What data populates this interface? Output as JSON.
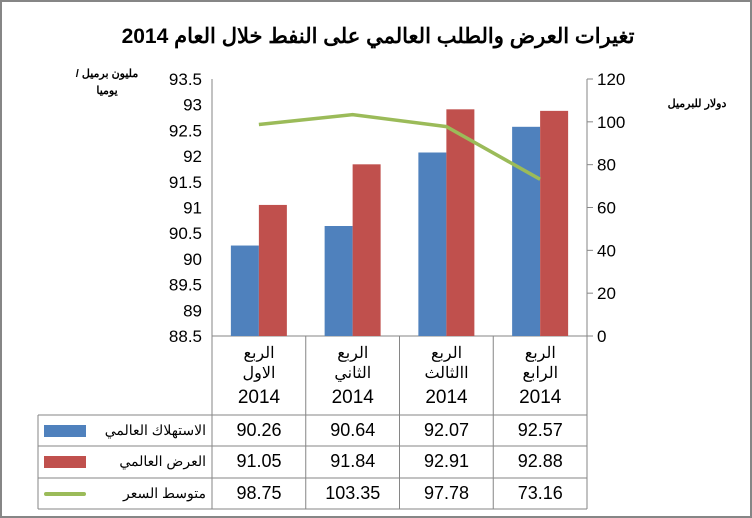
{
  "chart_data": {
    "type": "bar+line",
    "title": "تغيرات العرض والطلب العالمي على النفط خلال العام 2014",
    "ylabel_left": "مليون برميل /يوميا",
    "ylabel_right": "دولار للبرميل",
    "ylim_left": [
      88.5,
      93.5
    ],
    "yticks_left": [
      "88.5",
      "89",
      "89.5",
      "90",
      "90.5",
      "91",
      "91.5",
      "92",
      "92.5",
      "93",
      "93.5"
    ],
    "ylim_right": [
      0,
      120
    ],
    "yticks_right": [
      "0",
      "20",
      "40",
      "60",
      "80",
      "100",
      "120"
    ],
    "grid": false,
    "categories": [
      {
        "line1": "الربع",
        "line2": "الاول",
        "year": "2014"
      },
      {
        "line1": "الربع",
        "line2": "الثاني",
        "year": "2014"
      },
      {
        "line1": "الربع",
        "line2": "االثالث",
        "year": "2014"
      },
      {
        "line1": "الربع",
        "line2": "الرابع",
        "year": "2014"
      }
    ],
    "series": [
      {
        "name": "الاستهلاك العالمي",
        "type": "bar",
        "axis": "left",
        "color": "#4F81BD",
        "values": [
          90.26,
          90.64,
          92.07,
          92.57
        ],
        "labels": [
          "90.26",
          "90.64",
          "92.07",
          "92.57"
        ]
      },
      {
        "name": "العرض العالمي",
        "type": "bar",
        "axis": "left",
        "color": "#C0504D",
        "values": [
          91.05,
          91.84,
          92.91,
          92.88
        ],
        "labels": [
          "91.05",
          "91.84",
          "92.91",
          "92.88"
        ]
      },
      {
        "name": "متوسط السعر",
        "type": "line",
        "axis": "right",
        "color": "#9BBB59",
        "values": [
          98.75,
          103.35,
          97.78,
          73.16
        ],
        "labels": [
          "98.75",
          "103.35",
          "97.78",
          "73.16"
        ]
      }
    ],
    "legend": "data-table"
  }
}
